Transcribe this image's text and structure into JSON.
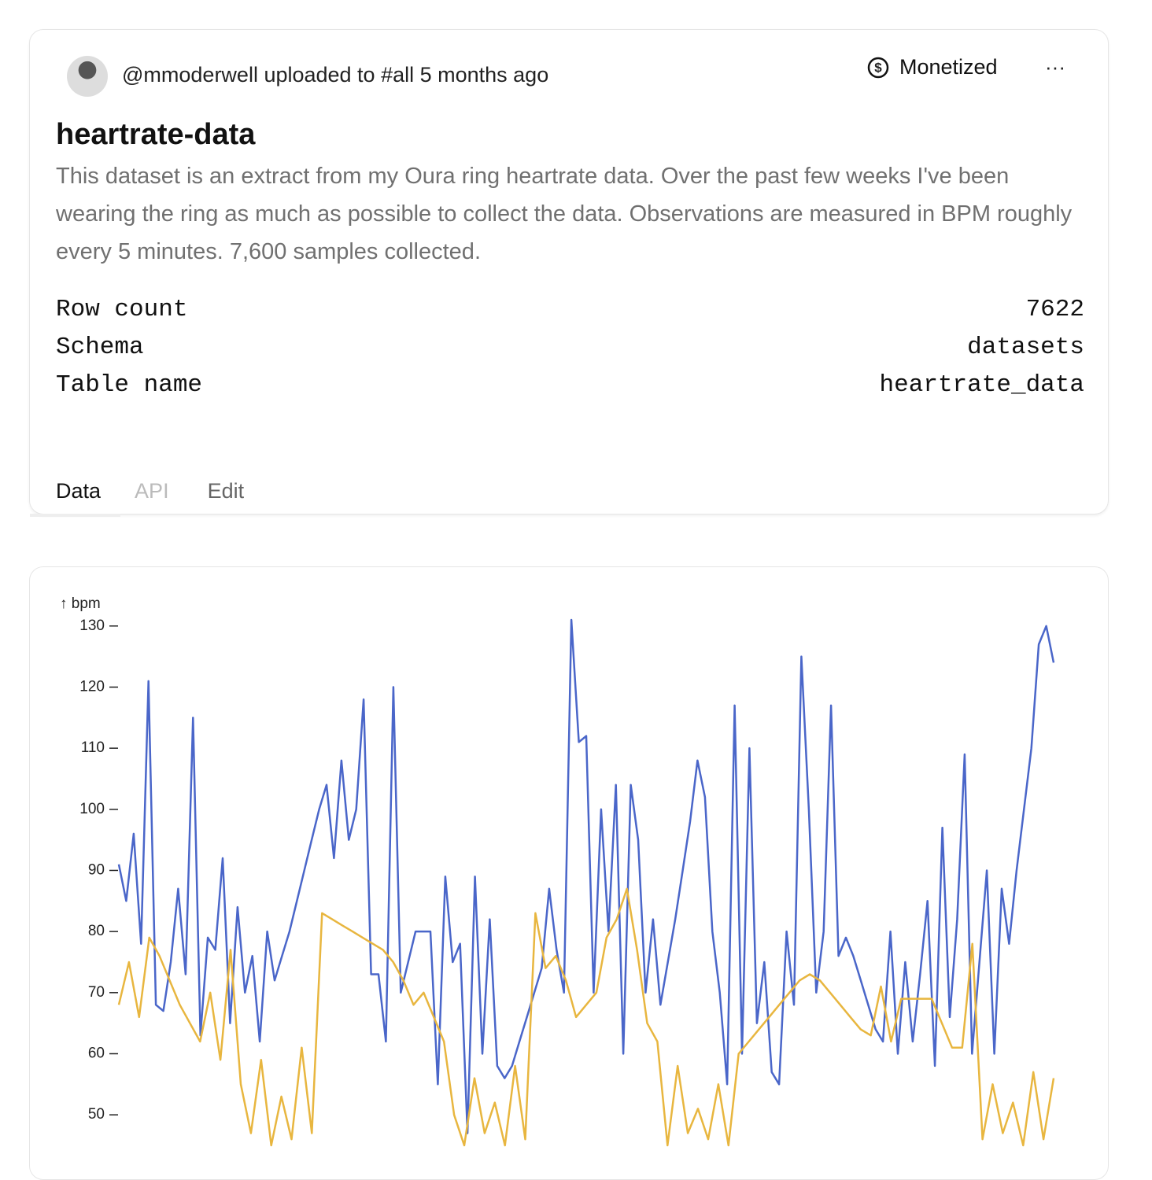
{
  "header": {
    "byline": "@mmoderwell uploaded to #all 5 months ago",
    "badge": "Monetized",
    "menu": "···"
  },
  "dataset": {
    "title": "heartrate-data",
    "description": "This dataset is an extract from my Oura ring heartrate data. Over the past few weeks I've been wearing the ring as much as possible to collect the data. Observations are measured in BPM roughly every 5 minutes. 7,600 samples collected.",
    "meta": [
      [
        "Row count",
        7622
      ],
      [
        "Schema",
        "datasets"
      ],
      [
        "Table name",
        "heartrate_data"
      ]
    ]
  },
  "tabs": [
    "Data",
    "API",
    "Edit"
  ],
  "chart_data": {
    "type": "line",
    "y_label": "↑ bpm",
    "ylim": [
      45,
      131
    ],
    "yticks": [
      50,
      60,
      70,
      80,
      90,
      100,
      110,
      120,
      130
    ],
    "series": [
      {
        "name": "blue",
        "color": "#4a66c9",
        "values": [
          91,
          85,
          96,
          78,
          121,
          68,
          67,
          75,
          87,
          73,
          115,
          63,
          79,
          77,
          92,
          65,
          84,
          70,
          76,
          62,
          80,
          72,
          76,
          80,
          85,
          90,
          95,
          100,
          104,
          92,
          108,
          95,
          100,
          118,
          73,
          73,
          62,
          120,
          70,
          75,
          80,
          80,
          80,
          55,
          89,
          75,
          78,
          47,
          89,
          60,
          82,
          58,
          56,
          58,
          62,
          66,
          70,
          74,
          87,
          77,
          70,
          131,
          111,
          112,
          70,
          100,
          80,
          104,
          60,
          104,
          95,
          70,
          82,
          68,
          75,
          82,
          90,
          98,
          108,
          102,
          80,
          70,
          55,
          117,
          60,
          110,
          65,
          75,
          57,
          55,
          80,
          68,
          125,
          100,
          70,
          80,
          117,
          76,
          79,
          76,
          72,
          68,
          64,
          62,
          80,
          60,
          75,
          62,
          73,
          85,
          58,
          97,
          66,
          82,
          109,
          60,
          75,
          90,
          60,
          87,
          78,
          90,
          100,
          110,
          127,
          130,
          124
        ]
      },
      {
        "name": "yellow",
        "color": "#e8b63f",
        "values": [
          68,
          75,
          66,
          79,
          76,
          72,
          68,
          65,
          62,
          70,
          59,
          77,
          55,
          47,
          59,
          45,
          53,
          46,
          61,
          47,
          83,
          82,
          81,
          80,
          79,
          78,
          77,
          75,
          72,
          68,
          70,
          66,
          62,
          50,
          45,
          56,
          47,
          52,
          45,
          58,
          46,
          83,
          74,
          76,
          72,
          66,
          68,
          70,
          79,
          82,
          87,
          77,
          65,
          62,
          45,
          58,
          47,
          51,
          46,
          55,
          45,
          60,
          62,
          64,
          66,
          68,
          70,
          72,
          73,
          72,
          70,
          68,
          66,
          64,
          63,
          71,
          62,
          69,
          69,
          69,
          69,
          65,
          61,
          61,
          78,
          46,
          55,
          47,
          52,
          45,
          57,
          46,
          56
        ]
      }
    ]
  }
}
